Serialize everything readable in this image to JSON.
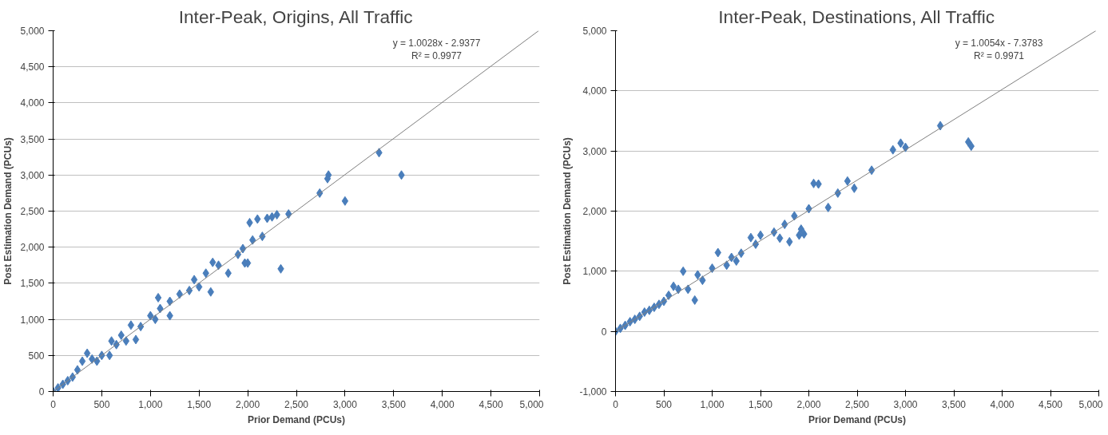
{
  "chart_data": [
    {
      "type": "scatter",
      "title": "Inter-Peak, Origins, All Traffic",
      "xlabel": "Prior Demand (PCUs)",
      "ylabel": "Post Estimation Demand (PCUs)",
      "xlim": [
        0,
        5000
      ],
      "ylim": [
        0,
        5000
      ],
      "xticks": [
        0,
        500,
        {
          "value": 1000,
          "label": "1,000"
        },
        {
          "value": 1500,
          "label": "1,500"
        },
        {
          "value": 2000,
          "label": "2,000"
        },
        {
          "value": 2500,
          "label": "2,500"
        },
        {
          "value": 3000,
          "label": "3,000"
        },
        {
          "value": 3500,
          "label": "3,500"
        },
        {
          "value": 4000,
          "label": "4,000"
        },
        {
          "value": 4500,
          "label": "4,500"
        },
        {
          "value": 5000,
          "label": "5,000"
        }
      ],
      "yticks": [
        0,
        500,
        {
          "value": 1000,
          "label": "1,000"
        },
        {
          "value": 1500,
          "label": "1,500"
        },
        {
          "value": 2000,
          "label": "2,000"
        },
        {
          "value": 2500,
          "label": "2,500"
        },
        {
          "value": 3000,
          "label": "3,000"
        },
        {
          "value": 3500,
          "label": "3,500"
        },
        {
          "value": 4000,
          "label": "4,000"
        },
        {
          "value": 4500,
          "label": "4,500"
        },
        {
          "value": 5000,
          "label": "5,000"
        }
      ],
      "grid": "y",
      "marker": "diamond",
      "annotations": [
        "y = 1.0028x - 2.9377",
        "R² = 0.9977"
      ],
      "series": [
        {
          "color": "#4a7ebb",
          "x": [
            3350,
            3580,
            3000,
            2830,
            2820,
            2740,
            2420,
            2340,
            2300,
            2250,
            2200,
            2100,
            2150,
            2020,
            2050,
            2000,
            1970,
            1900,
            1950,
            1800,
            1700,
            1640,
            1620,
            1570,
            1500,
            1450,
            1400,
            1300,
            1200,
            1200,
            1100,
            1080,
            1050,
            1000,
            900,
            850,
            800,
            750,
            700,
            650,
            600,
            580,
            500,
            450,
            400,
            350,
            300,
            250,
            200,
            150,
            100,
            50,
            0
          ],
          "values": [
            3310,
            3000,
            2640,
            3000,
            2950,
            2750,
            2460,
            1700,
            2450,
            2420,
            2400,
            2390,
            2150,
            2340,
            2100,
            1780,
            1780,
            1900,
            1980,
            1640,
            1750,
            1790,
            1380,
            1640,
            1450,
            1550,
            1400,
            1350,
            1250,
            1050,
            1150,
            1300,
            1000,
            1050,
            900,
            720,
            920,
            700,
            780,
            650,
            700,
            500,
            500,
            420,
            450,
            530,
            420,
            300,
            200,
            150,
            100,
            50,
            0
          ]
        },
        {
          "type": "line",
          "color": "#7f7f7f",
          "marker": "none",
          "x": [
            0,
            4990
          ],
          "values": [
            0,
            5000
          ]
        }
      ]
    },
    {
      "type": "scatter",
      "title": "Inter-Peak, Destinations, All Traffic",
      "xlabel": "Prior Demand (PCUs)",
      "ylabel": "Post Estimation Demand (PCUs)",
      "xlim": [
        0,
        5000
      ],
      "ylim": [
        -1000,
        5000
      ],
      "xticks": [
        0,
        500,
        {
          "value": 1000,
          "label": "1,000"
        },
        {
          "value": 1500,
          "label": "1,500"
        },
        {
          "value": 2000,
          "label": "2,000"
        },
        {
          "value": 2500,
          "label": "2,500"
        },
        {
          "value": 3000,
          "label": "3,000"
        },
        {
          "value": 3500,
          "label": "3,500"
        },
        {
          "value": 4000,
          "label": "4,000"
        },
        {
          "value": 4500,
          "label": "4,500"
        },
        {
          "value": 5000,
          "label": "5,000"
        }
      ],
      "yticks": [
        {
          "value": -1000,
          "label": "-1,000"
        },
        0,
        {
          "value": 1000,
          "label": "1,000"
        },
        {
          "value": 2000,
          "label": "2,000"
        },
        {
          "value": 3000,
          "label": "3,000"
        },
        {
          "value": 4000,
          "label": "4,000"
        },
        {
          "value": 5000,
          "label": "5,000"
        }
      ],
      "grid": "y",
      "marker": "diamond",
      "annotations": [
        "y = 1.0054x - 7.3783",
        "R² = 0.9971"
      ],
      "series": [
        {
          "color": "#4a7ebb",
          "x": [
            3360,
            3650,
            3680,
            2950,
            3000,
            2870,
            2650,
            2470,
            2400,
            2300,
            2200,
            2100,
            2050,
            2000,
            1950,
            1900,
            1920,
            1850,
            1800,
            1750,
            1700,
            1640,
            1500,
            1400,
            1450,
            1300,
            1250,
            1200,
            1150,
            1060,
            1000,
            900,
            850,
            820,
            750,
            700,
            650,
            600,
            550,
            500,
            450,
            400,
            350,
            300,
            250,
            200,
            150,
            100,
            50,
            0
          ],
          "values": [
            3420,
            3150,
            3080,
            3130,
            3060,
            3020,
            2680,
            2380,
            2500,
            2300,
            2060,
            2450,
            2460,
            2040,
            1620,
            1600,
            1700,
            1920,
            1490,
            1780,
            1550,
            1650,
            1600,
            1560,
            1450,
            1300,
            1170,
            1230,
            1100,
            1310,
            1050,
            850,
            940,
            520,
            700,
            1000,
            700,
            750,
            600,
            500,
            450,
            400,
            350,
            320,
            250,
            200,
            160,
            100,
            50,
            0
          ]
        },
        {
          "type": "line",
          "color": "#7f7f7f",
          "marker": "none",
          "x": [
            0,
            4970
          ],
          "values": [
            0,
            5000
          ]
        }
      ]
    }
  ]
}
